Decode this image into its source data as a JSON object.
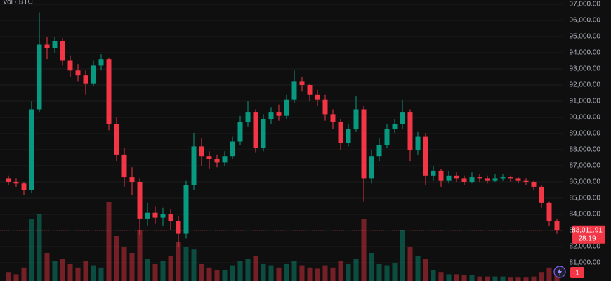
{
  "chart_data": {
    "type": "candlestick",
    "indicator_label": "Vol · BTC",
    "ylim": [
      79870,
      97260
    ],
    "yticks": [
      {
        "value": 81000,
        "label": "81,000.00"
      },
      {
        "value": 82000,
        "label": "82,000.00"
      },
      {
        "value": 83000,
        "label": "83,000.00"
      },
      {
        "value": 84000,
        "label": "84,000.00"
      },
      {
        "value": 85000,
        "label": "85,000.00"
      },
      {
        "value": 86000,
        "label": "86,000.00"
      },
      {
        "value": 87000,
        "label": "87,000.00"
      },
      {
        "value": 88000,
        "label": "88,000.00"
      },
      {
        "value": 89000,
        "label": "89,000.00"
      },
      {
        "value": 90000,
        "label": "90,000.00"
      },
      {
        "value": 91000,
        "label": "91,000.00"
      },
      {
        "value": 92000,
        "label": "92,000.00"
      },
      {
        "value": 93000,
        "label": "93,000.00"
      },
      {
        "value": 94000,
        "label": "94,000.00"
      },
      {
        "value": 95000,
        "label": "95,000.00"
      },
      {
        "value": 96000,
        "label": "96,000.00"
      },
      {
        "value": 97000,
        "label": "97,000.00"
      }
    ],
    "grid": true,
    "up_color": "#089981",
    "down_color": "#f23645",
    "last_price": {
      "value": 83011.91,
      "label": "83,011.91"
    },
    "countdown": "28:19",
    "badge": "1",
    "open": [
      86200,
      86000,
      85900,
      85500,
      90500,
      94500,
      94300,
      94700,
      93500,
      92900,
      92600,
      92100,
      93200,
      93600,
      89600,
      87700,
      86300,
      86000,
      83700,
      84100,
      83800,
      84000,
      83600,
      82800,
      85800,
      88200,
      87600,
      87400,
      87200,
      87600,
      88500,
      89700,
      90300,
      88100,
      89900,
      90300,
      90100,
      91100,
      92200,
      92000,
      91400,
      91100,
      90200,
      89700,
      88400,
      89300,
      90500,
      86200,
      87600,
      88300,
      89300,
      89600,
      90300,
      88000,
      88800,
      86400,
      86700,
      86100,
      86400,
      86200,
      86000,
      86300,
      86200,
      86100,
      86200,
      86300,
      86200,
      86100,
      86000,
      85700,
      84700,
      83600
    ],
    "high": [
      86400,
      86200,
      86000,
      91000,
      96500,
      95000,
      95000,
      94900,
      93800,
      93300,
      92900,
      93500,
      93900,
      93700,
      90000,
      88100,
      86900,
      86200,
      84700,
      84500,
      84400,
      84300,
      83900,
      86100,
      89000,
      88700,
      87900,
      87700,
      87900,
      88800,
      90100,
      91000,
      90500,
      90200,
      90600,
      90800,
      91400,
      92900,
      92500,
      92100,
      91700,
      91400,
      90500,
      89900,
      89600,
      91300,
      90700,
      88000,
      88700,
      89600,
      89900,
      91100,
      90500,
      89100,
      89000,
      87000,
      86800,
      86700,
      86600,
      86400,
      86600,
      86500,
      86400,
      86500,
      86500,
      86400,
      86300,
      86200,
      86100,
      85800,
      84800,
      83700
    ],
    "low": [
      85800,
      85700,
      85200,
      85300,
      90300,
      93600,
      94000,
      93200,
      92500,
      92200,
      91400,
      91900,
      92900,
      89200,
      87300,
      85700,
      85200,
      82700,
      83300,
      83400,
      83300,
      83000,
      82000,
      82500,
      85500,
      87000,
      86800,
      86900,
      87000,
      87400,
      88300,
      89400,
      87800,
      87900,
      89600,
      89800,
      89900,
      90900,
      91600,
      91000,
      90700,
      89800,
      89300,
      88000,
      88200,
      89100,
      84800,
      85900,
      87300,
      88100,
      89000,
      89300,
      87300,
      87700,
      85800,
      86100,
      85700,
      85900,
      86000,
      85800,
      85900,
      86000,
      85900,
      86000,
      86100,
      86000,
      85900,
      85800,
      85500,
      84400,
      83300,
      82800
    ],
    "close": [
      86000,
      85900,
      85500,
      90500,
      94500,
      94300,
      94700,
      93500,
      92900,
      92600,
      92100,
      93200,
      93600,
      89600,
      87700,
      86300,
      86000,
      83700,
      84100,
      83800,
      84000,
      83600,
      82800,
      85800,
      88200,
      87600,
      87400,
      87200,
      87600,
      88500,
      89700,
      90300,
      88100,
      89900,
      90300,
      90100,
      91100,
      92200,
      92000,
      91400,
      91100,
      90200,
      89700,
      88400,
      89300,
      90500,
      86200,
      87600,
      88300,
      89300,
      89600,
      90300,
      88000,
      88800,
      86400,
      86700,
      86100,
      86400,
      86200,
      86000,
      86300,
      86200,
      86100,
      86200,
      86300,
      86200,
      86100,
      86000,
      85700,
      84700,
      83600,
      83012
    ],
    "volume": [
      8,
      6,
      12,
      55,
      60,
      25,
      18,
      20,
      15,
      12,
      18,
      14,
      12,
      70,
      40,
      30,
      25,
      45,
      20,
      15,
      18,
      22,
      35,
      30,
      28,
      15,
      12,
      10,
      10,
      14,
      18,
      20,
      22,
      15,
      14,
      12,
      15,
      18,
      14,
      12,
      11,
      14,
      12,
      18,
      15,
      20,
      55,
      25,
      15,
      14,
      16,
      45,
      30,
      22,
      20,
      10,
      8,
      6,
      6,
      5,
      5,
      4,
      4,
      4,
      4,
      3,
      3,
      3,
      4,
      8,
      12,
      10
    ]
  }
}
